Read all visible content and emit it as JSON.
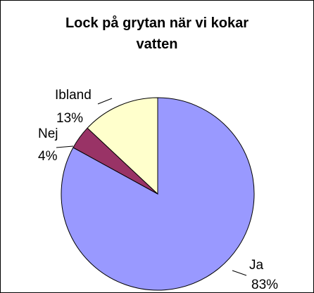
{
  "chart_data": {
    "type": "pie",
    "title": "Lock på grytan när vi kokar vatten",
    "categories": [
      "Ja",
      "Nej",
      "Ibland"
    ],
    "values": [
      83,
      4,
      13
    ],
    "value_labels": [
      "83%",
      "4%",
      "13%"
    ],
    "colors": [
      "#9999ff",
      "#993366",
      "#ffffcc"
    ]
  }
}
